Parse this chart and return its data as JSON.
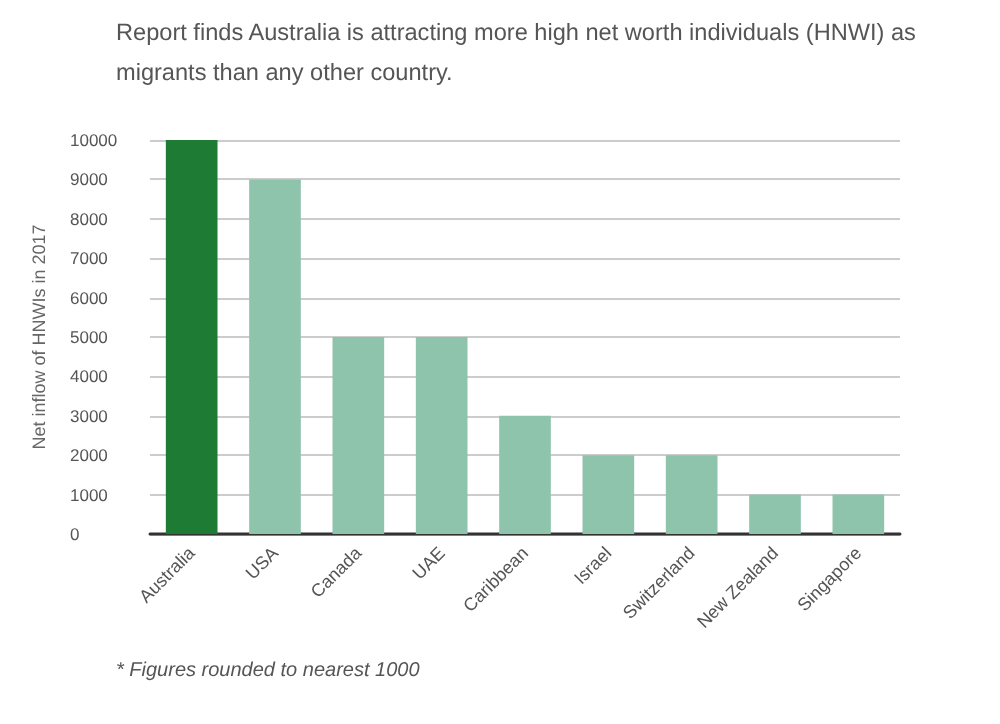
{
  "chart_data": {
    "type": "bar",
    "title": "Report finds Australia is attracting more high net worth individuals (HNWI) as migrants than any other country.",
    "ylabel": "Net inflow of HNWIs in 2017",
    "categories": [
      "Australia",
      "USA",
      "Canada",
      "UAE",
      "Caribbean",
      "Israel",
      "Switzerland",
      "New Zealand",
      "Singapore"
    ],
    "values": [
      10000,
      9000,
      5000,
      5000,
      3000,
      2000,
      2000,
      1000,
      1000
    ],
    "colors": [
      "#1e7b34",
      "#8fc4ac",
      "#8fc4ac",
      "#8fc4ac",
      "#8fc4ac",
      "#8fc4ac",
      "#8fc4ac",
      "#8fc4ac",
      "#8fc4ac"
    ],
    "ylim": [
      0,
      10000
    ],
    "yticks": [
      0,
      1000,
      2000,
      3000,
      4000,
      5000,
      6000,
      7000,
      8000,
      9000,
      10000
    ],
    "grid": "y",
    "annotations": [
      "* Figures rounded to nearest 1000"
    ]
  }
}
